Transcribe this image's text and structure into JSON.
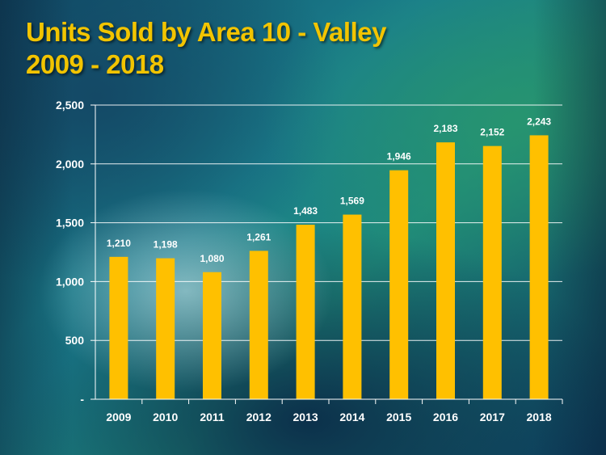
{
  "title_line1": "Units Sold by Area 10 - Valley",
  "title_line2": "2009 - 2018",
  "colors": {
    "bar": "#ffc000",
    "title": "#f2c400",
    "text": "#ffffff"
  },
  "chart_data": {
    "type": "bar",
    "title": "Units Sold by Area 10 - Valley 2009 - 2018",
    "categories": [
      "2009",
      "2010",
      "2011",
      "2012",
      "2013",
      "2014",
      "2015",
      "2016",
      "2017",
      "2018"
    ],
    "values": [
      1210,
      1198,
      1080,
      1261,
      1483,
      1569,
      1946,
      2183,
      2152,
      2243
    ],
    "value_labels": [
      "1,210",
      "1,198",
      "1,080",
      "1,261",
      "1,483",
      "1,569",
      "1,946",
      "2,183",
      "2,152",
      "2,243"
    ],
    "ylim": [
      0,
      2500
    ],
    "yticks": [
      0,
      500,
      1000,
      1500,
      2000,
      2500
    ],
    "ytick_labels": [
      "-",
      "500",
      "1,000",
      "1,500",
      "2,000",
      "2,500"
    ],
    "grid": true,
    "xlabel": "",
    "ylabel": ""
  }
}
